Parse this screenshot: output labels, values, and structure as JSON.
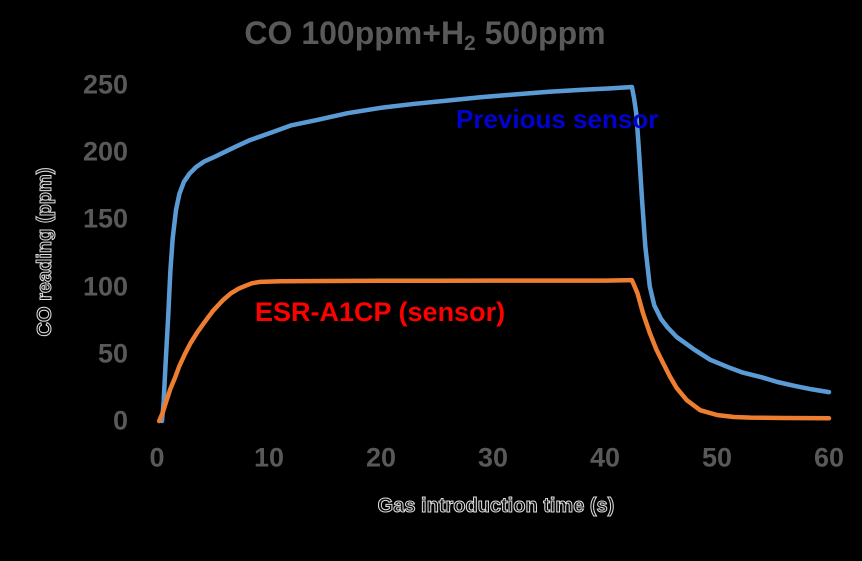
{
  "background": "#000000",
  "text_color": "#595959",
  "title": {
    "pre": "CO 100ppm+H",
    "sub": "2",
    "post": " 500ppm"
  },
  "y_axis": {
    "title": "CO reading (ppm)",
    "ticks": [
      0,
      50,
      100,
      150,
      200,
      250
    ]
  },
  "x_axis": {
    "title": "Gas introduction time (s)",
    "ticks": [
      0,
      10,
      20,
      30,
      40,
      50,
      60
    ]
  },
  "series_labels": [
    {
      "text": "Previous sensor",
      "color": "#0202cf"
    },
    {
      "text": "ESR-A1CP (sensor)",
      "color": "#ff0000"
    }
  ],
  "chart_data": {
    "type": "line",
    "title": "CO 100ppm+H2 500ppm",
    "xlabel": "Gas introduction time (s)",
    "ylabel": "CO reading (ppm)",
    "xlim": [
      0,
      60
    ],
    "ylim": [
      0,
      250
    ],
    "grid": false,
    "legend": "inline-text-labels",
    "series": [
      {
        "name": "Previous sensor",
        "color": "#5B9BD5",
        "points": [
          [
            0.45,
            0
          ],
          [
            0.6,
            15
          ],
          [
            0.75,
            40
          ],
          [
            1.0,
            78
          ],
          [
            1.2,
            112
          ],
          [
            1.4,
            136
          ],
          [
            1.7,
            157
          ],
          [
            2.0,
            169
          ],
          [
            2.4,
            178
          ],
          [
            2.9,
            184
          ],
          [
            3.5,
            189
          ],
          [
            4.2,
            193
          ],
          [
            5,
            196
          ],
          [
            6,
            200
          ],
          [
            7,
            204
          ],
          [
            8.3,
            209
          ],
          [
            10,
            214
          ],
          [
            12,
            220
          ],
          [
            14.3,
            224
          ],
          [
            17,
            229
          ],
          [
            20,
            233
          ],
          [
            23,
            236
          ],
          [
            26,
            238.5
          ],
          [
            29,
            241
          ],
          [
            32,
            243
          ],
          [
            35,
            245
          ],
          [
            38,
            246.5
          ],
          [
            40.5,
            247.5
          ],
          [
            42.4,
            248.5
          ],
          [
            42.6,
            240
          ],
          [
            42.8,
            228
          ],
          [
            43.0,
            205
          ],
          [
            43.3,
            165
          ],
          [
            43.6,
            130
          ],
          [
            44.0,
            100
          ],
          [
            44.4,
            86
          ],
          [
            45.0,
            76
          ],
          [
            45.6,
            69.5
          ],
          [
            46.4,
            62.5
          ],
          [
            48,
            53
          ],
          [
            49.4,
            45.5
          ],
          [
            51,
            40
          ],
          [
            52.3,
            36
          ],
          [
            54,
            32.5
          ],
          [
            55.4,
            29
          ],
          [
            57,
            26
          ],
          [
            58.5,
            23.5
          ],
          [
            60,
            21.5
          ]
        ]
      },
      {
        "name": "ESR-A1CP (sensor)",
        "color": "#ED7D31",
        "points": [
          [
            0.2,
            0
          ],
          [
            0.5,
            6
          ],
          [
            0.8,
            14
          ],
          [
            1.2,
            24
          ],
          [
            1.6,
            32
          ],
          [
            2.0,
            41
          ],
          [
            2.5,
            50
          ],
          [
            3.0,
            58
          ],
          [
            3.6,
            66
          ],
          [
            4.2,
            73
          ],
          [
            5.0,
            82
          ],
          [
            5.9,
            90
          ],
          [
            6.6,
            95
          ],
          [
            7.3,
            98.5
          ],
          [
            8.0,
            101
          ],
          [
            8.5,
            102.5
          ],
          [
            9.2,
            103.5
          ],
          [
            11,
            104
          ],
          [
            15,
            104.2
          ],
          [
            20,
            104.3
          ],
          [
            25,
            104.3
          ],
          [
            30,
            104.5
          ],
          [
            35,
            104.5
          ],
          [
            40,
            104.5
          ],
          [
            42.4,
            104.8
          ],
          [
            42.9,
            95
          ],
          [
            43.4,
            80
          ],
          [
            44.0,
            65.5
          ],
          [
            44.6,
            53
          ],
          [
            45.2,
            43
          ],
          [
            45.8,
            33
          ],
          [
            46.4,
            24.5
          ],
          [
            47.3,
            15.5
          ],
          [
            48.5,
            8
          ],
          [
            50,
            4.5
          ],
          [
            51.5,
            3
          ],
          [
            53,
            2.5
          ],
          [
            56,
            2.2
          ],
          [
            60,
            2
          ]
        ]
      }
    ]
  }
}
